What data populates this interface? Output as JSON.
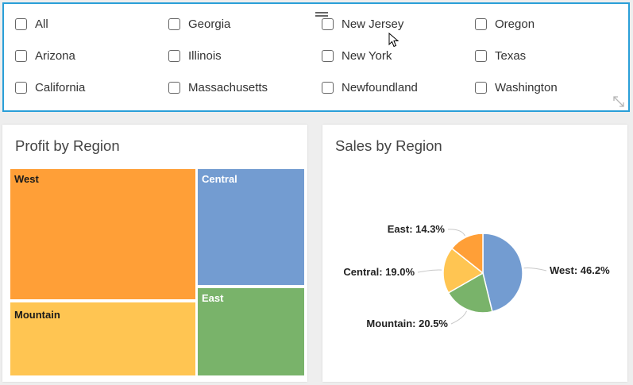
{
  "filter": {
    "states": [
      [
        "All",
        "Georgia",
        "New Jersey",
        "Oregon"
      ],
      [
        "Arizona",
        "Illinois",
        "New York",
        "Texas"
      ],
      [
        "California",
        "Massachusetts",
        "Newfoundland",
        "Washington"
      ]
    ]
  },
  "profit_card": {
    "title": "Profit by Region",
    "tiles": [
      {
        "label": "West",
        "color": "#ff9f37",
        "text_color": "#1a1a1a"
      },
      {
        "label": "Central",
        "color": "#739cd1",
        "text_color": "#ffffff"
      },
      {
        "label": "Mountain",
        "color": "#ffc552",
        "text_color": "#1a1a1a"
      },
      {
        "label": "East",
        "color": "#79b36a",
        "text_color": "#ffffff"
      }
    ]
  },
  "sales_card": {
    "title": "Sales by Region"
  },
  "chart_data": {
    "type": "pie",
    "title": "Sales by Region",
    "slices": [
      {
        "name": "West",
        "value": 46.2,
        "label": "West: 46.2%",
        "color": "#739cd1"
      },
      {
        "name": "Mountain",
        "value": 20.5,
        "label": "Mountain: 20.5%",
        "color": "#79b36a"
      },
      {
        "name": "Central",
        "value": 19.0,
        "label": "Central: 19.0%",
        "color": "#ffc552"
      },
      {
        "name": "East",
        "value": 14.3,
        "label": "East: 14.3%",
        "color": "#ff9f37"
      }
    ]
  }
}
